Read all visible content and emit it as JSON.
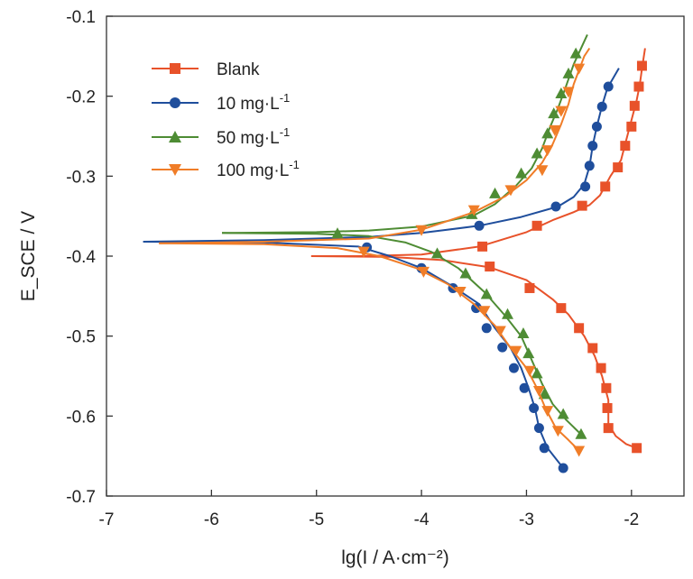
{
  "chart_data": {
    "type": "line",
    "xlabel": "lg(I / A·cm⁻²)",
    "ylabel": "E_SCE / V",
    "xlim": [
      -7,
      -1.5
    ],
    "ylim": [
      -0.7,
      -0.1
    ],
    "xticks": [
      -7,
      -6,
      -5,
      -4,
      -3,
      -2
    ],
    "yticks": [
      -0.1,
      -0.2,
      -0.3,
      -0.4,
      -0.5,
      -0.6,
      -0.7
    ],
    "xtick_labels": [
      "-7",
      "-6",
      "-5",
      "-4",
      "-3",
      "-2"
    ],
    "ytick_labels": [
      "-0.1",
      "-0.2",
      "-0.3",
      "-0.4",
      "-0.5",
      "-0.6",
      "-0.7"
    ],
    "legend_position": "top-left",
    "legend_labels": {
      "blank": "Blank",
      "s10": "10 mg·L",
      "s50": "50 mg·L",
      "s100": "100 mg·L",
      "exp": "-1"
    },
    "series": [
      {
        "name": "Blank",
        "color": "#e8522a",
        "marker": "square",
        "anodic": [
          [
            -5.05,
            -0.4
          ],
          [
            -4.6,
            -0.4
          ],
          [
            -4.0,
            -0.398
          ],
          [
            -3.45,
            -0.388
          ],
          [
            -3.0,
            -0.37
          ],
          [
            -2.75,
            -0.355
          ],
          [
            -2.55,
            -0.345
          ],
          [
            -2.4,
            -0.336
          ],
          [
            -2.3,
            -0.324
          ],
          [
            -2.2,
            -0.3
          ],
          [
            -2.1,
            -0.28
          ],
          [
            -2.05,
            -0.255
          ],
          [
            -2.0,
            -0.23
          ],
          [
            -1.95,
            -0.205
          ],
          [
            -1.92,
            -0.185
          ],
          [
            -1.9,
            -0.165
          ],
          [
            -1.87,
            -0.14
          ]
        ],
        "cathodic": [
          [
            -5.05,
            -0.4
          ],
          [
            -4.3,
            -0.401
          ],
          [
            -3.8,
            -0.405
          ],
          [
            -3.35,
            -0.414
          ],
          [
            -3.0,
            -0.43
          ],
          [
            -2.75,
            -0.454
          ],
          [
            -2.6,
            -0.473
          ],
          [
            -2.45,
            -0.5
          ],
          [
            -2.35,
            -0.525
          ],
          [
            -2.28,
            -0.55
          ],
          [
            -2.22,
            -0.58
          ],
          [
            -2.22,
            -0.61
          ],
          [
            -2.15,
            -0.625
          ],
          [
            -2.05,
            -0.635
          ],
          [
            -1.95,
            -0.64
          ]
        ],
        "markers": [
          [
            -3.42,
            -0.388
          ],
          [
            -2.9,
            -0.362
          ],
          [
            -2.47,
            -0.337
          ],
          [
            -2.25,
            -0.313
          ],
          [
            -2.13,
            -0.289
          ],
          [
            -2.06,
            -0.262
          ],
          [
            -2.0,
            -0.238
          ],
          [
            -1.97,
            -0.212
          ],
          [
            -1.93,
            -0.188
          ],
          [
            -1.9,
            -0.162
          ],
          [
            -3.35,
            -0.413
          ],
          [
            -2.97,
            -0.44
          ],
          [
            -2.67,
            -0.465
          ],
          [
            -2.5,
            -0.49
          ],
          [
            -2.37,
            -0.515
          ],
          [
            -2.29,
            -0.54
          ],
          [
            -2.24,
            -0.565
          ],
          [
            -2.23,
            -0.59
          ],
          [
            -2.22,
            -0.615
          ],
          [
            -1.95,
            -0.64
          ]
        ]
      },
      {
        "name": "10 mg·L-1",
        "color": "#1f4e9c",
        "marker": "circle",
        "anodic": [
          [
            -6.65,
            -0.382
          ],
          [
            -5.5,
            -0.38
          ],
          [
            -4.5,
            -0.376
          ],
          [
            -4.0,
            -0.371
          ],
          [
            -3.45,
            -0.362
          ],
          [
            -3.05,
            -0.351
          ],
          [
            -2.7,
            -0.338
          ],
          [
            -2.55,
            -0.326
          ],
          [
            -2.45,
            -0.31
          ],
          [
            -2.4,
            -0.288
          ],
          [
            -2.37,
            -0.262
          ],
          [
            -2.33,
            -0.238
          ],
          [
            -2.28,
            -0.212
          ],
          [
            -2.23,
            -0.19
          ],
          [
            -2.12,
            -0.165
          ]
        ],
        "cathodic": [
          [
            -6.65,
            -0.382
          ],
          [
            -5.5,
            -0.383
          ],
          [
            -4.6,
            -0.388
          ],
          [
            -4.3,
            -0.4
          ],
          [
            -4.0,
            -0.415
          ],
          [
            -3.7,
            -0.438
          ],
          [
            -3.45,
            -0.46
          ],
          [
            -3.3,
            -0.49
          ],
          [
            -3.15,
            -0.515
          ],
          [
            -3.05,
            -0.54
          ],
          [
            -2.98,
            -0.565
          ],
          [
            -2.92,
            -0.59
          ],
          [
            -2.88,
            -0.615
          ],
          [
            -2.8,
            -0.64
          ],
          [
            -2.65,
            -0.665
          ]
        ],
        "markers": [
          [
            -4.52,
            -0.389
          ],
          [
            -4.0,
            -0.415
          ],
          [
            -3.7,
            -0.44
          ],
          [
            -3.48,
            -0.465
          ],
          [
            -3.38,
            -0.49
          ],
          [
            -3.23,
            -0.514
          ],
          [
            -3.12,
            -0.54
          ],
          [
            -3.02,
            -0.565
          ],
          [
            -2.93,
            -0.59
          ],
          [
            -2.88,
            -0.615
          ],
          [
            -2.83,
            -0.64
          ],
          [
            -2.65,
            -0.665
          ],
          [
            -3.45,
            -0.362
          ],
          [
            -2.72,
            -0.338
          ],
          [
            -2.44,
            -0.313
          ],
          [
            -2.4,
            -0.287
          ],
          [
            -2.37,
            -0.262
          ],
          [
            -2.33,
            -0.238
          ],
          [
            -2.28,
            -0.213
          ],
          [
            -2.22,
            -0.188
          ]
        ]
      },
      {
        "name": "50 mg·L-1",
        "color": "#4e8c34",
        "marker": "triangle-up",
        "anodic": [
          [
            -5.9,
            -0.371
          ],
          [
            -5.0,
            -0.37
          ],
          [
            -4.5,
            -0.368
          ],
          [
            -4.0,
            -0.363
          ],
          [
            -3.5,
            -0.349
          ],
          [
            -3.3,
            -0.335
          ],
          [
            -3.1,
            -0.312
          ],
          [
            -2.95,
            -0.29
          ],
          [
            -2.85,
            -0.265
          ],
          [
            -2.78,
            -0.24
          ],
          [
            -2.7,
            -0.215
          ],
          [
            -2.63,
            -0.19
          ],
          [
            -2.55,
            -0.16
          ],
          [
            -2.42,
            -0.123
          ]
        ],
        "cathodic": [
          [
            -5.9,
            -0.371
          ],
          [
            -5.0,
            -0.372
          ],
          [
            -4.5,
            -0.375
          ],
          [
            -4.15,
            -0.383
          ],
          [
            -3.9,
            -0.395
          ],
          [
            -3.65,
            -0.415
          ],
          [
            -3.4,
            -0.445
          ],
          [
            -3.2,
            -0.475
          ],
          [
            -3.05,
            -0.5
          ],
          [
            -2.95,
            -0.53
          ],
          [
            -2.85,
            -0.56
          ],
          [
            -2.75,
            -0.585
          ],
          [
            -2.62,
            -0.605
          ],
          [
            -2.48,
            -0.623
          ]
        ],
        "markers": [
          [
            -4.8,
            -0.372
          ],
          [
            -3.85,
            -0.397
          ],
          [
            -3.58,
            -0.422
          ],
          [
            -3.38,
            -0.448
          ],
          [
            -3.18,
            -0.473
          ],
          [
            -3.03,
            -0.497
          ],
          [
            -2.98,
            -0.522
          ],
          [
            -2.9,
            -0.547
          ],
          [
            -2.83,
            -0.573
          ],
          [
            -2.65,
            -0.598
          ],
          [
            -2.48,
            -0.623
          ],
          [
            -3.52,
            -0.348
          ],
          [
            -3.3,
            -0.322
          ],
          [
            -3.05,
            -0.297
          ],
          [
            -2.9,
            -0.272
          ],
          [
            -2.8,
            -0.247
          ],
          [
            -2.74,
            -0.222
          ],
          [
            -2.67,
            -0.197
          ],
          [
            -2.6,
            -0.172
          ],
          [
            -2.53,
            -0.147
          ]
        ]
      },
      {
        "name": "100 mg·L-1",
        "color": "#f07d28",
        "marker": "triangle-down",
        "anodic": [
          [
            -6.5,
            -0.384
          ],
          [
            -5.5,
            -0.382
          ],
          [
            -4.5,
            -0.378
          ],
          [
            -4.0,
            -0.367
          ],
          [
            -3.5,
            -0.345
          ],
          [
            -3.2,
            -0.325
          ],
          [
            -3.0,
            -0.305
          ],
          [
            -2.85,
            -0.283
          ],
          [
            -2.75,
            -0.26
          ],
          [
            -2.67,
            -0.235
          ],
          [
            -2.6,
            -0.21
          ],
          [
            -2.55,
            -0.185
          ],
          [
            -2.45,
            -0.15
          ],
          [
            -2.4,
            -0.14
          ]
        ],
        "cathodic": [
          [
            -6.5,
            -0.384
          ],
          [
            -5.5,
            -0.385
          ],
          [
            -4.8,
            -0.39
          ],
          [
            -4.4,
            -0.4
          ],
          [
            -4.05,
            -0.415
          ],
          [
            -3.75,
            -0.435
          ],
          [
            -3.5,
            -0.46
          ],
          [
            -3.3,
            -0.487
          ],
          [
            -3.15,
            -0.515
          ],
          [
            -3.0,
            -0.54
          ],
          [
            -2.9,
            -0.565
          ],
          [
            -2.82,
            -0.59
          ],
          [
            -2.72,
            -0.615
          ],
          [
            -2.6,
            -0.63
          ],
          [
            -2.5,
            -0.643
          ]
        ],
        "markers": [
          [
            -4.55,
            -0.394
          ],
          [
            -3.98,
            -0.419
          ],
          [
            -3.63,
            -0.444
          ],
          [
            -3.4,
            -0.468
          ],
          [
            -3.25,
            -0.493
          ],
          [
            -3.1,
            -0.518
          ],
          [
            -2.97,
            -0.543
          ],
          [
            -2.88,
            -0.568
          ],
          [
            -2.8,
            -0.593
          ],
          [
            -2.7,
            -0.618
          ],
          [
            -2.5,
            -0.643
          ],
          [
            -4.0,
            -0.367
          ],
          [
            -3.5,
            -0.342
          ],
          [
            -3.15,
            -0.317
          ],
          [
            -2.85,
            -0.292
          ],
          [
            -2.8,
            -0.267
          ],
          [
            -2.73,
            -0.242
          ],
          [
            -2.67,
            -0.218
          ],
          [
            -2.6,
            -0.194
          ],
          [
            -2.5,
            -0.165
          ]
        ]
      }
    ]
  }
}
